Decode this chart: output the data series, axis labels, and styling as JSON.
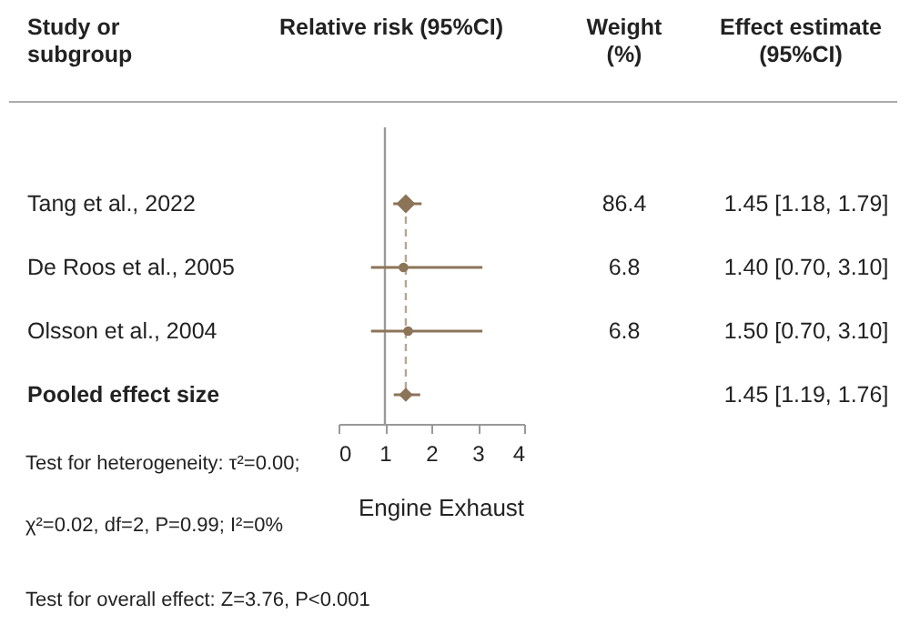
{
  "chart_data": {
    "type": "scatter",
    "title": "Relative risk (95%CI)",
    "xlabel": "Engine Exhaust",
    "categories": [
      "Tang et al., 2022",
      "De Roos et al., 2005",
      "Olsson et al., 2004",
      "Pooled effect size"
    ],
    "orientation": "horizontal",
    "series": [
      {
        "color": "#8c7458",
        "marker": "diamond",
        "values": [
          1.45,
          null,
          null,
          null
        ],
        "errors": [
          [
            1.18,
            1.79
          ],
          null,
          null,
          null
        ]
      },
      {
        "color": "#8c7458",
        "marker": "circle",
        "values": [
          null,
          1.4,
          1.5,
          null
        ],
        "errors": [
          null,
          [
            0.7,
            3.1
          ],
          [
            0.7,
            3.1
          ],
          null
        ]
      },
      {
        "color": "#8c7458",
        "marker": "diamond",
        "values": [
          null,
          null,
          null,
          1.45
        ],
        "errors": [
          null,
          null,
          null,
          [
            1.19,
            1.76
          ]
        ]
      }
    ],
    "xlim": [
      0,
      4
    ],
    "xticks": [
      0,
      1,
      2,
      3,
      4
    ],
    "grid": false,
    "tick_labels": "x",
    "ref_lines": [
      {
        "axis": "x",
        "value": 1,
        "color": "#999999",
        "line_style": "solid"
      },
      {
        "axis": "x",
        "value": 1.45,
        "color": "#b8a58f",
        "line_style": "dashed"
      }
    ],
    "annotations": [
      "Study or\nsubgroup",
      "Weight\n(%)",
      "Effect estimate\n(95%CI)",
      "86.4",
      "6.8",
      "6.8",
      "1.45 [1.18, 1.79]",
      "1.40 [0.70, 3.10]",
      "1.50 [0.70, 3.10]",
      "1.45 [1.19, 1.76]",
      "Test for heterogeneity: τ²=0.00;",
      "χ²=0.02, df=2, P=0.99; I²=0%",
      "Test for overall effect: Z=3.76, P<0.001"
    ]
  }
}
